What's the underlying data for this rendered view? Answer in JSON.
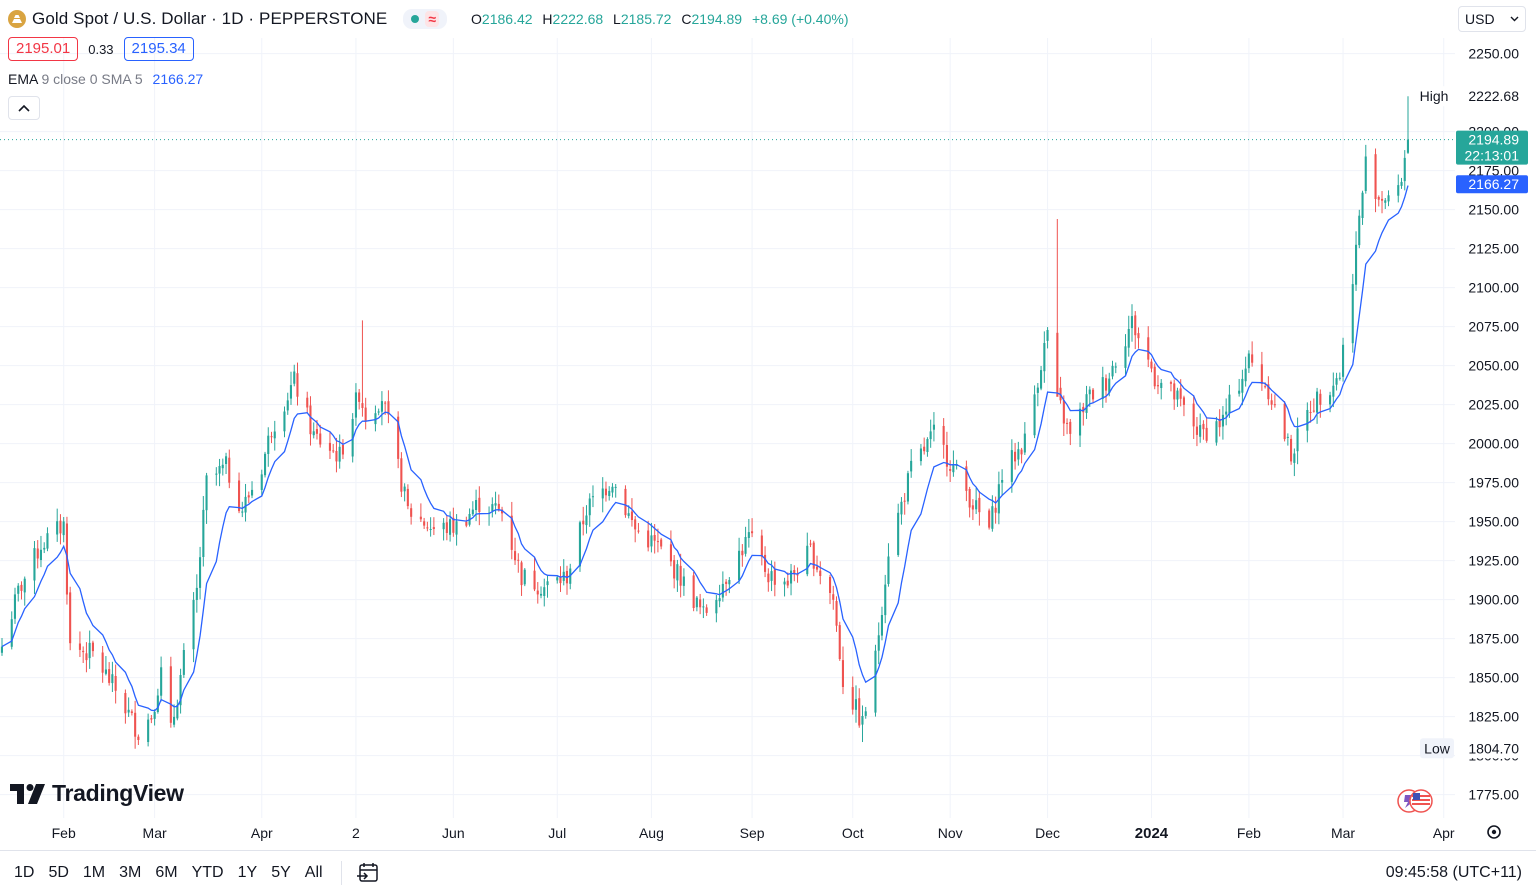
{
  "header": {
    "title": "Gold Spot / U.S. Dollar · 1D · PEPPERSTONE",
    "ohlc": {
      "o_label": "O",
      "o": "2186.42",
      "h_label": "H",
      "h": "2222.68",
      "l_label": "L",
      "l": "2185.72",
      "c_label": "C",
      "c": "2194.89",
      "change": "+8.69 (+0.40%)"
    },
    "sell_price": "2195.01",
    "spread": "0.33",
    "buy_price": "2195.34",
    "indicator": {
      "name": "EMA",
      "params": "9 close 0 SMA 5",
      "value": "2166.27"
    },
    "currency": "USD"
  },
  "price_axis": {
    "ticks": [
      "2250.00",
      "2200.00",
      "2175.00",
      "2150.00",
      "2125.00",
      "2100.00",
      "2075.00",
      "2050.00",
      "2025.00",
      "2000.00",
      "1975.00",
      "1950.00",
      "1925.00",
      "1900.00",
      "1875.00",
      "1850.00",
      "1825.00",
      "1800.00",
      "1775.00"
    ],
    "high_label": "High",
    "high_value": "2222.68",
    "low_label": "Low",
    "low_value": "1804.70",
    "last_price": "2194.89",
    "countdown": "22:13:01",
    "ema_value": "2166.27"
  },
  "time_axis": {
    "labels": [
      {
        "text": "Feb",
        "bold": false
      },
      {
        "text": "Mar",
        "bold": false
      },
      {
        "text": "Apr",
        "bold": false
      },
      {
        "text": "2",
        "bold": false
      },
      {
        "text": "Jun",
        "bold": false
      },
      {
        "text": "Jul",
        "bold": false
      },
      {
        "text": "Aug",
        "bold": false
      },
      {
        "text": "Sep",
        "bold": false
      },
      {
        "text": "Oct",
        "bold": false
      },
      {
        "text": "Nov",
        "bold": false
      },
      {
        "text": "Dec",
        "bold": false
      },
      {
        "text": "2024",
        "bold": true
      },
      {
        "text": "Feb",
        "bold": false
      },
      {
        "text": "Mar",
        "bold": false
      },
      {
        "text": "Apr",
        "bold": false
      }
    ]
  },
  "watermark": "TradingView",
  "toolbar": {
    "timeframes": [
      "1D",
      "5D",
      "1M",
      "3M",
      "6M",
      "YTD",
      "1Y",
      "5Y",
      "All"
    ],
    "clock": "09:45:58 (UTC+11)"
  },
  "colors": {
    "up": "#26a69a",
    "down": "#ef5350",
    "ema": "#2962ff",
    "grid": "#f0f3fa"
  },
  "chart_data": {
    "type": "candlestick",
    "symbol": "XAUUSD",
    "interval": "1D",
    "ylim": [
      1760,
      2260
    ],
    "x_start": "2023-01-13",
    "x_end": "2024-03-21",
    "high": {
      "value": 2222.68
    },
    "low": {
      "value": 1804.7
    },
    "last": {
      "value": 2194.89
    },
    "ema": {
      "name": "EMA",
      "length": 9,
      "smoothing": "SMA 5",
      "last": 2166.27
    },
    "close_path": [
      [
        "2023-01-13",
        1870
      ],
      [
        "2023-01-18",
        1905
      ],
      [
        "2023-01-25",
        1935
      ],
      [
        "2023-02-01",
        1948
      ],
      [
        "2023-02-03",
        1870
      ],
      [
        "2023-02-10",
        1865
      ],
      [
        "2023-02-17",
        1842
      ],
      [
        "2023-02-24",
        1815
      ],
      [
        "2023-02-28",
        1826
      ],
      [
        "2023-03-03",
        1853
      ],
      [
        "2023-03-06",
        1815
      ],
      [
        "2023-03-10",
        1862
      ],
      [
        "2023-03-14",
        1905
      ],
      [
        "2023-03-17",
        1975
      ],
      [
        "2023-03-23",
        1985
      ],
      [
        "2023-03-28",
        1958
      ],
      [
        "2023-04-03",
        1985
      ],
      [
        "2023-04-06",
        2010
      ],
      [
        "2023-04-13",
        2040
      ],
      [
        "2023-04-19",
        2005
      ],
      [
        "2023-04-27",
        1992
      ],
      [
        "2023-05-03",
        2033
      ],
      [
        "2023-05-05",
        2018
      ],
      [
        "2023-05-10",
        2030
      ],
      [
        "2023-05-18",
        1957
      ],
      [
        "2023-05-26",
        1945
      ],
      [
        "2023-06-02",
        1947
      ],
      [
        "2023-06-09",
        1962
      ],
      [
        "2023-06-16",
        1956
      ],
      [
        "2023-06-22",
        1915
      ],
      [
        "2023-06-29",
        1908
      ],
      [
        "2023-07-06",
        1915
      ],
      [
        "2023-07-12",
        1958
      ],
      [
        "2023-07-20",
        1977
      ],
      [
        "2023-07-27",
        1945
      ],
      [
        "2023-08-03",
        1934
      ],
      [
        "2023-08-10",
        1914
      ],
      [
        "2023-08-17",
        1890
      ],
      [
        "2023-08-24",
        1915
      ],
      [
        "2023-08-31",
        1940
      ],
      [
        "2023-09-06",
        1916
      ],
      [
        "2023-09-12",
        1912
      ],
      [
        "2023-09-19",
        1931
      ],
      [
        "2023-09-26",
        1900
      ],
      [
        "2023-09-29",
        1848
      ],
      [
        "2023-10-05",
        1820
      ],
      [
        "2023-10-09",
        1862
      ],
      [
        "2023-10-13",
        1932
      ],
      [
        "2023-10-20",
        1983
      ],
      [
        "2023-10-27",
        2006
      ],
      [
        "2023-11-02",
        1985
      ],
      [
        "2023-11-09",
        1958
      ],
      [
        "2023-11-13",
        1945
      ],
      [
        "2023-11-17",
        1980
      ],
      [
        "2023-11-24",
        2002
      ],
      [
        "2023-12-01",
        2072
      ],
      [
        "2023-12-04",
        2029
      ],
      [
        "2023-12-08",
        2004
      ],
      [
        "2023-12-13",
        2028
      ],
      [
        "2023-12-19",
        2040
      ],
      [
        "2023-12-27",
        2078
      ],
      [
        "2024-01-03",
        2043
      ],
      [
        "2024-01-10",
        2028
      ],
      [
        "2024-01-17",
        2006
      ],
      [
        "2024-01-24",
        2015
      ],
      [
        "2024-02-01",
        2054
      ],
      [
        "2024-02-07",
        2035
      ],
      [
        "2024-02-14",
        1993
      ],
      [
        "2024-02-20",
        2024
      ],
      [
        "2024-02-29",
        2045
      ],
      [
        "2024-03-05",
        2125
      ],
      [
        "2024-03-08",
        2180
      ],
      [
        "2024-03-12",
        2158
      ],
      [
        "2024-03-18",
        2160
      ],
      [
        "2024-03-21",
        2194.89
      ]
    ]
  }
}
